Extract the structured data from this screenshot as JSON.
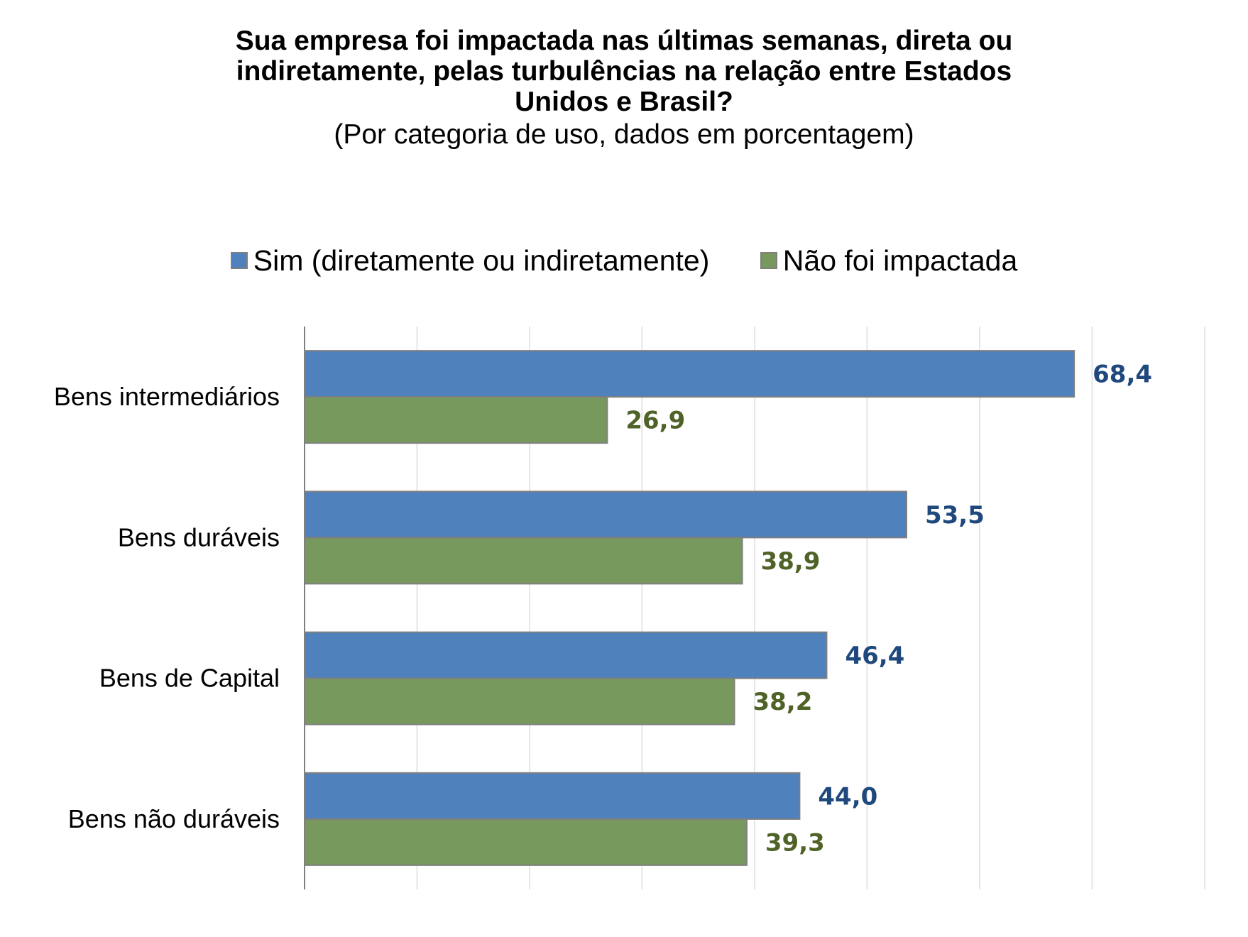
{
  "chart_data": {
    "type": "bar",
    "orientation": "horizontal",
    "title_lines": [
      "Sua empresa foi impactada nas últimas semanas, direta ou",
      "indiretamente, pelas turbulências na relação entre Estados",
      "Unidos e Brasil?"
    ],
    "subtitle": "(Por categoria de uso, dados em porcentagem)",
    "categories": [
      "Bens intermediários",
      "Bens duráveis",
      "Bens de Capital",
      "Bens não duráveis"
    ],
    "series": [
      {
        "name": "Sim (diretamente ou indiretamente)",
        "color": "#4f81bd",
        "label_color": "#1f497d",
        "values": [
          68.4,
          53.5,
          46.4,
          44.0
        ],
        "labels": [
          "68,4",
          "53,5",
          "46,4",
          "44,0"
        ]
      },
      {
        "name": "Não foi impactada",
        "color": "#77995d",
        "label_color": "#4f6228",
        "values": [
          26.9,
          38.9,
          38.2,
          39.3
        ],
        "labels": [
          "26,9",
          "38,9",
          "38,2",
          "39,3"
        ]
      }
    ],
    "xlim": [
      0,
      80
    ],
    "grid_step": 10,
    "grid": true,
    "axis_tick_labels_shown": false,
    "legend_position": "top"
  }
}
